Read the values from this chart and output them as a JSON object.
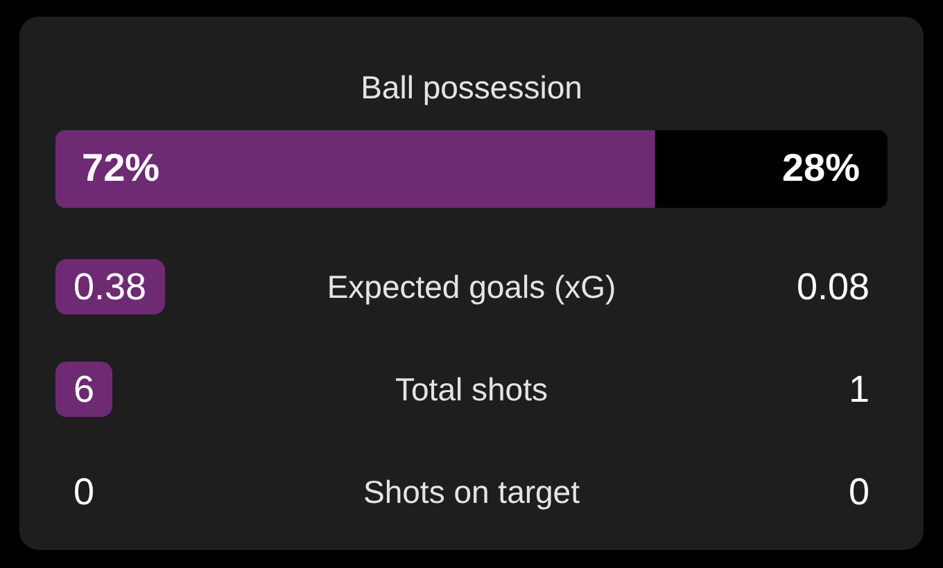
{
  "chart_data": [
    {
      "type": "bar",
      "title": "Ball possession",
      "orientation": "horizontal",
      "stacked": true,
      "categories": [
        null
      ],
      "series": [
        {
          "color": "#6e2a73",
          "values": [
            72
          ],
          "value_labels": [
            "72%"
          ]
        },
        {
          "color": "#000000",
          "values": [
            28
          ],
          "value_labels": [
            "28%"
          ]
        }
      ],
      "xlim": [
        0,
        100
      ],
      "tick_labels": false
    },
    {
      "type": "other",
      "categories": [
        "Expected goals (xG)",
        "Total shots",
        "Shots on target"
      ],
      "series": [
        {
          "color": "#6e2a73",
          "values": [
            0.38,
            6,
            0
          ]
        },
        {
          "values": [
            0.08,
            1,
            0
          ]
        }
      ],
      "data_labels": true
    }
  ]
}
